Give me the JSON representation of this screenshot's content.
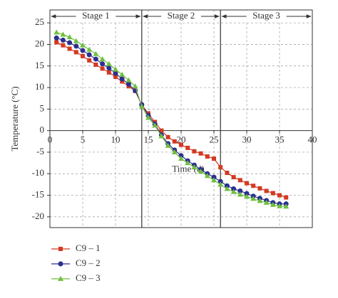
{
  "chart_data": {
    "type": "line",
    "x_label": "Time (d)",
    "y_label": "Temperature (°C)",
    "x": [
      1,
      2,
      3,
      4,
      5,
      6,
      7,
      8,
      9,
      10,
      11,
      12,
      13,
      14,
      15,
      16,
      17,
      18,
      19,
      20,
      21,
      22,
      23,
      24,
      25,
      26,
      27,
      28,
      29,
      30,
      31,
      32,
      33,
      34,
      35,
      36
    ],
    "series": [
      {
        "name": "C9 – 1",
        "color": "#d23a22",
        "marker": "square",
        "values": [
          20.5,
          19.8,
          19,
          18.2,
          17.3,
          16.3,
          15.3,
          14.4,
          13.5,
          12.5,
          11.4,
          10.3,
          9.2,
          6,
          4,
          2,
          0,
          -1.5,
          -2.5,
          -3.3,
          -4,
          -4.8,
          -5.3,
          -6,
          -6.5,
          -8.5,
          -9.8,
          -10.8,
          -11.5,
          -12.2,
          -12.8,
          -13.4,
          -14,
          -14.5,
          -15,
          -15.5
        ]
      },
      {
        "name": "C9 – 2",
        "color": "#2b2f8f",
        "marker": "circle",
        "values": [
          21.5,
          21,
          20.4,
          19.6,
          18.6,
          17.6,
          16.6,
          15.5,
          14.5,
          13.3,
          12,
          10.8,
          9.3,
          6,
          3.5,
          1.5,
          -1,
          -3,
          -4.5,
          -5.8,
          -7,
          -8,
          -9,
          -10,
          -10.8,
          -11.8,
          -12.8,
          -13.5,
          -14,
          -14.6,
          -15.2,
          -15.7,
          -16.2,
          -16.7,
          -17,
          -17
        ]
      },
      {
        "name": "C9 – 3",
        "color": "#6fbf3f",
        "marker": "triangle",
        "values": [
          22.8,
          22.3,
          21.7,
          20.8,
          19.8,
          18.8,
          17.8,
          16.6,
          15.5,
          14.2,
          13,
          11.7,
          10.3,
          5.6,
          3,
          1.2,
          -1.3,
          -3.5,
          -5,
          -6.5,
          -7.5,
          -8.5,
          -9.5,
          -10.5,
          -11.5,
          -12.5,
          -13.5,
          -14.2,
          -14.8,
          -15.3,
          -15.8,
          -16.3,
          -16.7,
          -17.2,
          -17.5,
          -17.6
        ]
      }
    ],
    "stages": [
      {
        "label": "Stage 1",
        "start": 0,
        "end": 14
      },
      {
        "label": "Stage 2",
        "start": 14,
        "end": 26
      },
      {
        "label": "Stage 3",
        "start": 26,
        "end": 40
      }
    ],
    "xlim": [
      0,
      40
    ],
    "xticks": [
      0,
      5,
      10,
      15,
      20,
      25,
      30,
      35,
      40
    ],
    "ylim": [
      -22.5,
      28
    ],
    "yticks": [
      25,
      20,
      15,
      10,
      5,
      0,
      -5,
      -10,
      -15,
      -20
    ],
    "grid": true
  }
}
